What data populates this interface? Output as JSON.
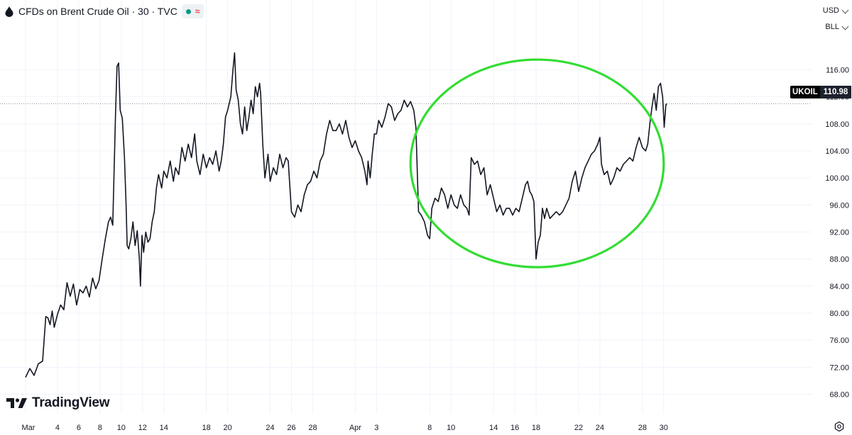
{
  "header": {
    "symbol_title": "CFDs on Brent Crude Oil · 30 · TVC"
  },
  "controls": {
    "currency": "USD",
    "unit": "BLL"
  },
  "branding": {
    "logo_text": "TradingView"
  },
  "price_tag": {
    "symbol": "UKOIL",
    "last_price": "110.98"
  },
  "icons": [
    "market-open-dot-icon",
    "delayed-data-icon",
    "chevron-down-icon",
    "tradingview-logo-icon",
    "settings-icon"
  ],
  "colors": {
    "series_line": "#131722",
    "highlight_ellipse": "#33dd33",
    "market_open": "#089981",
    "delayed": "#f23645"
  },
  "chart_data": {
    "type": "line",
    "title": "CFDs on Brent Crude Oil · 30 · TVC",
    "xlabel": "",
    "ylabel": "",
    "ylim": [
      68,
      119
    ],
    "y_ticks": [
      "116.00",
      "112.00",
      "108.00",
      "104.00",
      "100.00",
      "96.00",
      "92.00",
      "88.00",
      "84.00",
      "80.00",
      "76.00",
      "72.00",
      "68.00"
    ],
    "x_ticks": [
      "Mar",
      "4",
      "6",
      "8",
      "10",
      "12",
      "14",
      "18",
      "20",
      "24",
      "26",
      "28",
      "Apr",
      "3",
      "8",
      "10",
      "14",
      "16",
      "18",
      "22",
      "24",
      "28",
      "30"
    ],
    "x_tick_days": [
      0,
      3,
      5,
      7,
      9,
      11,
      13,
      17,
      19,
      23,
      25,
      27,
      31,
      33,
      38,
      40,
      44,
      46,
      48,
      52,
      54,
      58,
      60
    ],
    "x_unit": "days since Mar 1",
    "last_value": 110.98,
    "series": [
      {
        "values": [
          [
            0.0,
            70.5
          ],
          [
            0.4,
            71.8
          ],
          [
            0.8,
            70.8
          ],
          [
            1.2,
            72.5
          ],
          [
            1.6,
            72.9
          ],
          [
            1.9,
            79.5
          ],
          [
            2.1,
            79.3
          ],
          [
            2.3,
            78.3
          ],
          [
            2.5,
            80.3
          ],
          [
            2.7,
            77.9
          ],
          [
            3.0,
            79.8
          ],
          [
            3.3,
            81.2
          ],
          [
            3.6,
            80.5
          ],
          [
            3.9,
            84.5
          ],
          [
            4.2,
            82.5
          ],
          [
            4.5,
            84.3
          ],
          [
            4.8,
            81.2
          ],
          [
            5.1,
            83.5
          ],
          [
            5.4,
            83.0
          ],
          [
            5.7,
            84.0
          ],
          [
            6.0,
            82.4
          ],
          [
            6.3,
            85.2
          ],
          [
            6.6,
            83.6
          ],
          [
            6.9,
            84.8
          ],
          [
            7.2,
            88.0
          ],
          [
            7.5,
            91.0
          ],
          [
            7.8,
            93.5
          ],
          [
            8.0,
            94.2
          ],
          [
            8.2,
            93.0
          ],
          [
            8.45,
            109.0
          ],
          [
            8.6,
            116.5
          ],
          [
            8.75,
            117.0
          ],
          [
            8.9,
            110.0
          ],
          [
            9.1,
            108.8
          ],
          [
            9.3,
            103.0
          ],
          [
            9.45,
            96.0
          ],
          [
            9.55,
            90.0
          ],
          [
            9.7,
            89.5
          ],
          [
            9.9,
            91.0
          ],
          [
            10.1,
            93.5
          ],
          [
            10.3,
            90.0
          ],
          [
            10.5,
            92.2
          ],
          [
            10.7,
            88.0
          ],
          [
            10.8,
            84.0
          ],
          [
            10.95,
            91.5
          ],
          [
            11.1,
            89.0
          ],
          [
            11.3,
            92.0
          ],
          [
            11.5,
            90.5
          ],
          [
            11.7,
            91.0
          ],
          [
            11.9,
            93.5
          ],
          [
            12.1,
            95.0
          ],
          [
            12.3,
            98.5
          ],
          [
            12.5,
            100.5
          ],
          [
            12.8,
            98.5
          ],
          [
            13.0,
            101.0
          ],
          [
            13.3,
            100.0
          ],
          [
            13.6,
            102.5
          ],
          [
            13.9,
            99.5
          ],
          [
            14.1,
            101.5
          ],
          [
            14.4,
            100.5
          ],
          [
            14.7,
            104.5
          ],
          [
            15.0,
            102.5
          ],
          [
            15.3,
            105.0
          ],
          [
            15.6,
            103.0
          ],
          [
            15.9,
            106.5
          ],
          [
            16.1,
            102.5
          ],
          [
            16.4,
            100.5
          ],
          [
            16.7,
            103.5
          ],
          [
            17.0,
            101.5
          ],
          [
            17.3,
            103.0
          ],
          [
            17.6,
            102.0
          ],
          [
            17.9,
            104.0
          ],
          [
            18.2,
            101.0
          ],
          [
            18.4,
            102.5
          ],
          [
            18.6,
            105.0
          ],
          [
            18.8,
            109.0
          ],
          [
            19.0,
            110.0
          ],
          [
            19.3,
            112.0
          ],
          [
            19.5,
            116.0
          ],
          [
            19.65,
            118.5
          ],
          [
            19.8,
            113.0
          ],
          [
            20.0,
            111.5
          ],
          [
            20.2,
            108.0
          ],
          [
            20.4,
            106.5
          ],
          [
            20.6,
            110.5
          ],
          [
            20.8,
            107.0
          ],
          [
            21.0,
            109.0
          ],
          [
            21.2,
            111.5
          ],
          [
            21.4,
            109.5
          ],
          [
            21.6,
            113.5
          ],
          [
            21.8,
            112.0
          ],
          [
            22.0,
            114.0
          ],
          [
            22.1,
            112.5
          ],
          [
            22.3,
            105.0
          ],
          [
            22.5,
            100.0
          ],
          [
            22.8,
            103.5
          ],
          [
            23.0,
            99.5
          ],
          [
            23.3,
            101.5
          ],
          [
            23.6,
            100.5
          ],
          [
            23.9,
            103.5
          ],
          [
            24.2,
            101.5
          ],
          [
            24.5,
            103.0
          ],
          [
            24.7,
            102.5
          ],
          [
            25.0,
            95.0
          ],
          [
            25.3,
            94.2
          ],
          [
            25.6,
            96.0
          ],
          [
            25.9,
            95.0
          ],
          [
            26.2,
            97.5
          ],
          [
            26.5,
            99.0
          ],
          [
            26.8,
            99.5
          ],
          [
            27.1,
            101.0
          ],
          [
            27.4,
            100.0
          ],
          [
            27.7,
            102.5
          ],
          [
            28.0,
            103.5
          ],
          [
            28.3,
            106.5
          ],
          [
            28.6,
            108.5
          ],
          [
            28.9,
            107.0
          ],
          [
            29.2,
            107.0
          ],
          [
            29.5,
            108.0
          ],
          [
            29.8,
            106.5
          ],
          [
            30.1,
            108.5
          ],
          [
            30.4,
            106.0
          ],
          [
            30.7,
            104.5
          ],
          [
            31.0,
            105.5
          ],
          [
            31.3,
            104.0
          ],
          [
            31.6,
            103.0
          ],
          [
            31.9,
            101.0
          ],
          [
            32.1,
            99.0
          ],
          [
            32.2,
            102.5
          ],
          [
            32.4,
            100.0
          ],
          [
            32.6,
            103.5
          ],
          [
            32.8,
            106.5
          ],
          [
            33.0,
            106.5
          ],
          [
            33.2,
            108.5
          ],
          [
            33.5,
            107.5
          ],
          [
            33.8,
            109.0
          ],
          [
            34.1,
            111.0
          ],
          [
            34.4,
            110.5
          ],
          [
            34.7,
            108.5
          ],
          [
            35.0,
            109.5
          ],
          [
            35.3,
            110.0
          ],
          [
            35.6,
            111.5
          ],
          [
            35.9,
            110.5
          ],
          [
            36.2,
            111.3
          ],
          [
            36.5,
            110.0
          ],
          [
            36.7,
            107.5
          ],
          [
            36.85,
            100.0
          ],
          [
            36.95,
            95.0
          ],
          [
            37.2,
            94.5
          ],
          [
            37.5,
            93.5
          ],
          [
            37.8,
            91.5
          ],
          [
            38.0,
            91.0
          ],
          [
            38.2,
            95.5
          ],
          [
            38.5,
            97.0
          ],
          [
            38.8,
            96.5
          ],
          [
            39.1,
            98.5
          ],
          [
            39.4,
            97.5
          ],
          [
            39.7,
            95.5
          ],
          [
            40.0,
            97.5
          ],
          [
            40.3,
            96.0
          ],
          [
            40.6,
            95.5
          ],
          [
            40.9,
            97.5
          ],
          [
            41.2,
            96.0
          ],
          [
            41.5,
            95.5
          ],
          [
            41.7,
            94.5
          ],
          [
            41.9,
            103.0
          ],
          [
            42.2,
            102.0
          ],
          [
            42.5,
            102.5
          ],
          [
            42.8,
            100.5
          ],
          [
            43.1,
            101.5
          ],
          [
            43.4,
            97.5
          ],
          [
            43.7,
            99.0
          ],
          [
            44.0,
            97.0
          ],
          [
            44.3,
            95.0
          ],
          [
            44.6,
            96.0
          ],
          [
            44.9,
            94.5
          ],
          [
            45.2,
            95.5
          ],
          [
            45.5,
            95.5
          ],
          [
            45.8,
            94.5
          ],
          [
            46.1,
            95.5
          ],
          [
            46.4,
            95.0
          ],
          [
            46.7,
            97.0
          ],
          [
            47.0,
            99.0
          ],
          [
            47.2,
            99.5
          ],
          [
            47.4,
            98.0
          ],
          [
            47.6,
            97.5
          ],
          [
            47.8,
            96.5
          ],
          [
            48.0,
            88.0
          ],
          [
            48.2,
            90.5
          ],
          [
            48.4,
            91.5
          ],
          [
            48.6,
            95.5
          ],
          [
            48.8,
            94.0
          ],
          [
            49.0,
            95.5
          ],
          [
            49.3,
            94.0
          ],
          [
            49.6,
            94.5
          ],
          [
            49.9,
            95.0
          ],
          [
            50.2,
            94.5
          ],
          [
            50.5,
            95.0
          ],
          [
            50.8,
            96.0
          ],
          [
            51.1,
            97.0
          ],
          [
            51.4,
            99.5
          ],
          [
            51.7,
            101.0
          ],
          [
            52.0,
            98.0
          ],
          [
            52.3,
            100.0
          ],
          [
            52.6,
            101.5
          ],
          [
            52.9,
            102.5
          ],
          [
            53.2,
            103.5
          ],
          [
            53.5,
            104.0
          ],
          [
            53.8,
            105.0
          ],
          [
            54.0,
            106.0
          ],
          [
            54.15,
            102.0
          ],
          [
            54.4,
            100.5
          ],
          [
            54.7,
            101.0
          ],
          [
            55.0,
            99.0
          ],
          [
            55.3,
            100.0
          ],
          [
            55.6,
            101.5
          ],
          [
            55.9,
            101.0
          ],
          [
            56.2,
            102.0
          ],
          [
            56.5,
            102.5
          ],
          [
            56.8,
            103.0
          ],
          [
            57.1,
            102.5
          ],
          [
            57.4,
            104.5
          ],
          [
            57.7,
            106.0
          ],
          [
            58.0,
            104.5
          ],
          [
            58.3,
            104.0
          ],
          [
            58.5,
            105.0
          ],
          [
            58.7,
            108.0
          ],
          [
            58.9,
            110.5
          ],
          [
            59.1,
            112.5
          ],
          [
            59.3,
            110.0
          ],
          [
            59.5,
            113.5
          ],
          [
            59.7,
            114.0
          ],
          [
            59.9,
            112.0
          ],
          [
            60.05,
            107.5
          ],
          [
            60.2,
            110.8
          ],
          [
            60.3,
            110.98
          ]
        ]
      }
    ],
    "annotations": [
      {
        "type": "ellipse",
        "color": "#33dd33",
        "from_day": 36.2,
        "to_day": 60.0,
        "from_price": 86.8,
        "to_price": 117.5
      }
    ],
    "reference_lines": [
      {
        "type": "last-price",
        "style": "dotted",
        "value": 110.98
      }
    ],
    "grid": true,
    "legend": "none"
  }
}
